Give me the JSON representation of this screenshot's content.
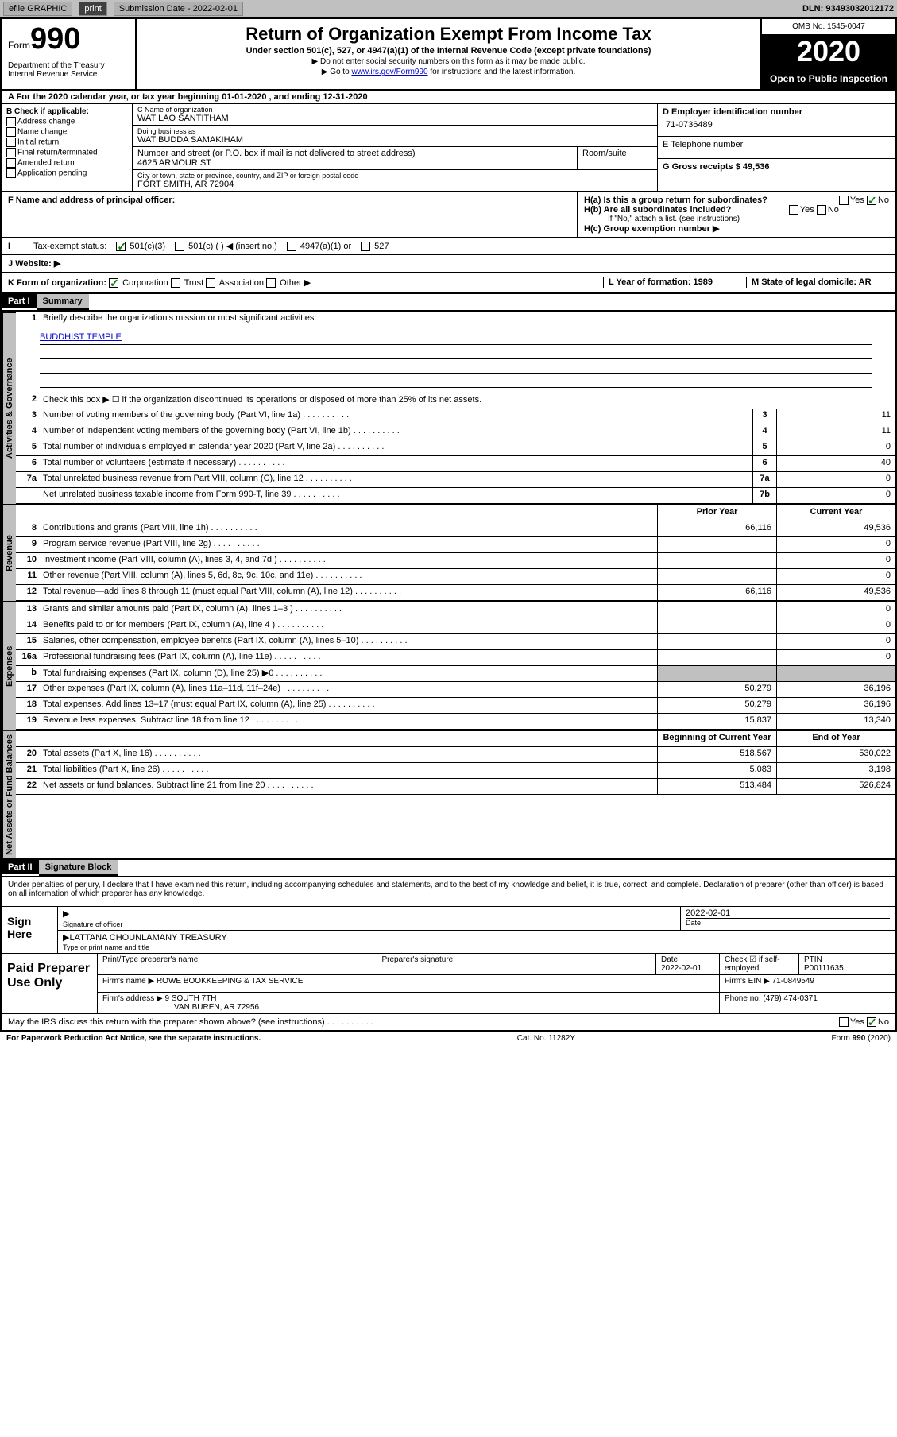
{
  "topbar": {
    "efile": "efile GRAPHIC",
    "print": "print",
    "subdate_label": "Submission Date - 2022-02-01",
    "dln": "DLN: 93493032012172"
  },
  "header": {
    "form_word": "Form",
    "form_num": "990",
    "dept": "Department of the Treasury\nInternal Revenue Service",
    "title": "Return of Organization Exempt From Income Tax",
    "sub": "Under section 501(c), 527, or 4947(a)(1) of the Internal Revenue Code (except private foundations)",
    "note1": "▶ Do not enter social security numbers on this form as it may be made public.",
    "note2_pre": "▶ Go to ",
    "note2_link": "www.irs.gov/Form990",
    "note2_post": " for instructions and the latest information.",
    "omb": "OMB No. 1545-0047",
    "year": "2020",
    "open": "Open to Public Inspection"
  },
  "rowA": "A For the 2020 calendar year, or tax year beginning 01-01-2020    , and ending 12-31-2020",
  "sectionB": {
    "hdr": "B Check if applicable:",
    "opts": [
      "Address change",
      "Name change",
      "Initial return",
      "Final return/terminated",
      "Amended return",
      "Application pending"
    ],
    "c_lbl": "C Name of organization",
    "c_name": "WAT LAO SANTITHAM",
    "dba_lbl": "Doing business as",
    "dba": "WAT BUDDA SAMAKIHAM",
    "addr_lbl": "Number and street (or P.O. box if mail is not delivered to street address)",
    "addr": "4625 ARMOUR ST",
    "room_lbl": "Room/suite",
    "city_lbl": "City or town, state or province, country, and ZIP or foreign postal code",
    "city": "FORT SMITH, AR  72904",
    "d_lbl": "D Employer identification number",
    "d_val": "71-0736489",
    "e_lbl": "E Telephone number",
    "g_lbl": "G Gross receipts $ 49,536"
  },
  "rowF": {
    "f": "F  Name and address of principal officer:",
    "ha": "H(a)  Is this a group return for subordinates?",
    "hb": "H(b)  Are all subordinates included?",
    "hb_note": "If \"No,\" attach a list. (see instructions)",
    "hc": "H(c)  Group exemption number ▶",
    "yes": "Yes",
    "no": "No"
  },
  "rowI": {
    "lbl": "Tax-exempt status:",
    "o1": "501(c)(3)",
    "o2": "501(c) (  ) ◀ (insert no.)",
    "o3": "4947(a)(1) or",
    "o4": "527"
  },
  "rowJ": "J   Website: ▶",
  "rowK": {
    "k": "K Form of organization:",
    "corp": "Corporation",
    "trust": "Trust",
    "assoc": "Association",
    "other": "Other ▶",
    "l": "L Year of formation: 1989",
    "m": "M State of legal domicile: AR"
  },
  "part1": {
    "hdr": "Part I",
    "title": "Summary",
    "tab1": "Activities & Governance",
    "tab2": "Revenue",
    "tab3": "Expenses",
    "tab4": "Net Assets or Fund Balances",
    "q1": "Briefly describe the organization's mission or most significant activities:",
    "mission": "BUDDHIST TEMPLE",
    "q2": "Check this box ▶ ☐ if the organization discontinued its operations or disposed of more than 25% of its net assets.",
    "lines_gov": [
      {
        "n": "3",
        "t": "Number of voting members of the governing body (Part VI, line 1a)",
        "box": "3",
        "v": "11"
      },
      {
        "n": "4",
        "t": "Number of independent voting members of the governing body (Part VI, line 1b)",
        "box": "4",
        "v": "11"
      },
      {
        "n": "5",
        "t": "Total number of individuals employed in calendar year 2020 (Part V, line 2a)",
        "box": "5",
        "v": "0"
      },
      {
        "n": "6",
        "t": "Total number of volunteers (estimate if necessary)",
        "box": "6",
        "v": "40"
      },
      {
        "n": "7a",
        "t": "Total unrelated business revenue from Part VIII, column (C), line 12",
        "box": "7a",
        "v": "0"
      },
      {
        "n": "",
        "t": "Net unrelated business taxable income from Form 990-T, line 39",
        "box": "7b",
        "v": "0"
      }
    ],
    "col_prior": "Prior Year",
    "col_curr": "Current Year",
    "lines_rev": [
      {
        "n": "8",
        "t": "Contributions and grants (Part VIII, line 1h)",
        "p": "66,116",
        "c": "49,536"
      },
      {
        "n": "9",
        "t": "Program service revenue (Part VIII, line 2g)",
        "p": "",
        "c": "0"
      },
      {
        "n": "10",
        "t": "Investment income (Part VIII, column (A), lines 3, 4, and 7d )",
        "p": "",
        "c": "0"
      },
      {
        "n": "11",
        "t": "Other revenue (Part VIII, column (A), lines 5, 6d, 8c, 9c, 10c, and 11e)",
        "p": "",
        "c": "0"
      },
      {
        "n": "12",
        "t": "Total revenue—add lines 8 through 11 (must equal Part VIII, column (A), line 12)",
        "p": "66,116",
        "c": "49,536"
      }
    ],
    "lines_exp": [
      {
        "n": "13",
        "t": "Grants and similar amounts paid (Part IX, column (A), lines 1–3 )",
        "p": "",
        "c": "0"
      },
      {
        "n": "14",
        "t": "Benefits paid to or for members (Part IX, column (A), line 4 )",
        "p": "",
        "c": "0"
      },
      {
        "n": "15",
        "t": "Salaries, other compensation, employee benefits (Part IX, column (A), lines 5–10)",
        "p": "",
        "c": "0"
      },
      {
        "n": "16a",
        "t": "Professional fundraising fees (Part IX, column (A), line 11e)",
        "p": "",
        "c": "0"
      },
      {
        "n": "b",
        "t": "Total fundraising expenses (Part IX, column (D), line 25) ▶0",
        "p": "shade",
        "c": "shade"
      },
      {
        "n": "17",
        "t": "Other expenses (Part IX, column (A), lines 11a–11d, 11f–24e)",
        "p": "50,279",
        "c": "36,196"
      },
      {
        "n": "18",
        "t": "Total expenses. Add lines 13–17 (must equal Part IX, column (A), line 25)",
        "p": "50,279",
        "c": "36,196"
      },
      {
        "n": "19",
        "t": "Revenue less expenses. Subtract line 18 from line 12",
        "p": "15,837",
        "c": "13,340"
      }
    ],
    "col_begin": "Beginning of Current Year",
    "col_end": "End of Year",
    "lines_net": [
      {
        "n": "20",
        "t": "Total assets (Part X, line 16)",
        "p": "518,567",
        "c": "530,022"
      },
      {
        "n": "21",
        "t": "Total liabilities (Part X, line 26)",
        "p": "5,083",
        "c": "3,198"
      },
      {
        "n": "22",
        "t": "Net assets or fund balances. Subtract line 21 from line 20",
        "p": "513,484",
        "c": "526,824"
      }
    ]
  },
  "part2": {
    "hdr": "Part II",
    "title": "Signature Block",
    "decl": "Under penalties of perjury, I declare that I have examined this return, including accompanying schedules and statements, and to the best of my knowledge and belief, it is true, correct, and complete. Declaration of preparer (other than officer) is based on all information of which preparer has any knowledge.",
    "sign_here": "Sign Here",
    "sig_officer": "Signature of officer",
    "sig_date": "2022-02-01",
    "sig_date_lbl": "Date",
    "officer_name": "LATTANA CHOUNLAMANY TREASURY",
    "officer_lbl": "Type or print name and title",
    "paid": "Paid Preparer Use Only",
    "prep_name_lbl": "Print/Type preparer's name",
    "prep_sig_lbl": "Preparer's signature",
    "prep_date_lbl": "Date",
    "prep_date": "2022-02-01",
    "prep_check": "Check ☑ if self-employed",
    "ptin_lbl": "PTIN",
    "ptin": "P00111635",
    "firm_name_lbl": "Firm's name    ▶",
    "firm_name": "ROWE BOOKKEEPING & TAX SERVICE",
    "firm_ein_lbl": "Firm's EIN ▶",
    "firm_ein": "71-0849549",
    "firm_addr_lbl": "Firm's address ▶",
    "firm_addr1": "9 SOUTH 7TH",
    "firm_addr2": "VAN BUREN, AR  72956",
    "phone_lbl": "Phone no.",
    "phone": "(479) 474-0371",
    "discuss": "May the IRS discuss this return with the preparer shown above? (see instructions)",
    "yes": "Yes",
    "no": "No"
  },
  "footer": {
    "left": "For Paperwork Reduction Act Notice, see the separate instructions.",
    "mid": "Cat. No. 11282Y",
    "right": "Form 990 (2020)"
  }
}
